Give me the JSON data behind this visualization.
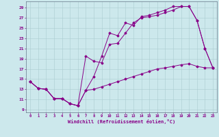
{
  "xlabel": "Windchill (Refroidissement éolien,°C)",
  "xlim": [
    -0.5,
    23.5
  ],
  "ylim": [
    8.5,
    30.2
  ],
  "xticks": [
    0,
    1,
    2,
    3,
    4,
    5,
    6,
    7,
    8,
    9,
    10,
    11,
    12,
    13,
    14,
    15,
    16,
    17,
    18,
    19,
    20,
    21,
    22,
    23
  ],
  "yticks": [
    9,
    11,
    13,
    15,
    17,
    19,
    21,
    23,
    25,
    27,
    29
  ],
  "bg_color": "#cce8ec",
  "line_color": "#880088",
  "line1_y": [
    14.5,
    13.2,
    13.0,
    11.2,
    11.2,
    10.2,
    9.8,
    12.8,
    15.5,
    19.5,
    24.0,
    23.5,
    26.0,
    25.5,
    27.2,
    27.5,
    28.0,
    28.5,
    29.2,
    29.2,
    29.2,
    26.5,
    21.0,
    17.2
  ],
  "line2_y": [
    14.5,
    13.2,
    13.0,
    11.2,
    11.2,
    10.2,
    9.8,
    19.5,
    18.5,
    18.2,
    21.8,
    22.0,
    24.0,
    26.0,
    27.0,
    27.2,
    27.5,
    28.0,
    28.5,
    29.2,
    29.2,
    26.5,
    21.0,
    17.2
  ],
  "line3_y": [
    14.5,
    13.2,
    13.0,
    11.2,
    11.2,
    10.2,
    9.8,
    12.8,
    13.0,
    13.5,
    14.0,
    14.5,
    15.0,
    15.5,
    16.0,
    16.5,
    17.0,
    17.2,
    17.5,
    17.8,
    18.0,
    17.5,
    17.2,
    17.2
  ]
}
